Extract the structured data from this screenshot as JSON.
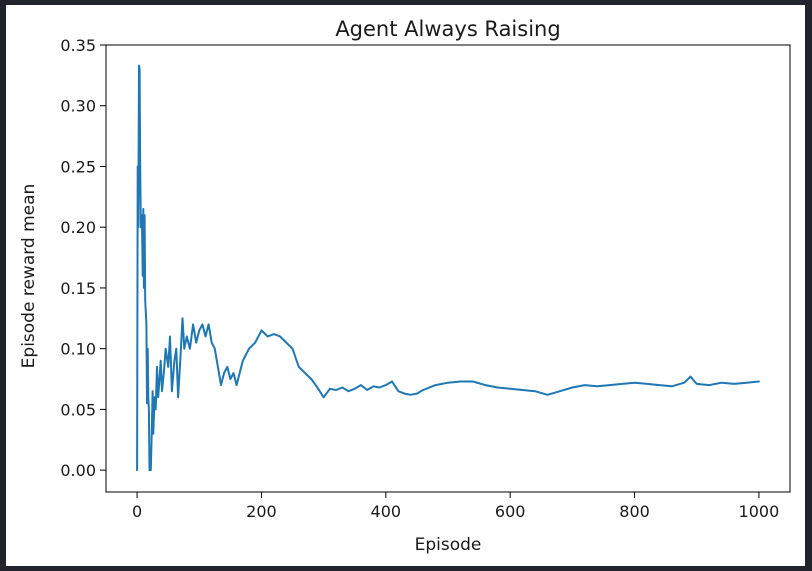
{
  "chart_data": {
    "type": "line",
    "title": "Agent Always Raising",
    "xlabel": "Episode",
    "ylabel": "Episode reward mean",
    "xlim": [
      -50,
      1050
    ],
    "ylim": [
      -0.018,
      0.35
    ],
    "xticks": [
      0,
      200,
      400,
      600,
      800,
      1000
    ],
    "xtick_labels": [
      "0",
      "200",
      "400",
      "600",
      "800",
      "1000"
    ],
    "yticks": [
      0.0,
      0.05,
      0.1,
      0.15,
      0.2,
      0.25,
      0.3,
      0.35
    ],
    "ytick_labels": [
      "0.00",
      "0.05",
      "0.10",
      "0.15",
      "0.20",
      "0.25",
      "0.30",
      "0.35"
    ],
    "grid": false,
    "line_color": "#1f77b4",
    "series": [
      {
        "x": [
          0,
          1,
          2,
          3,
          4,
          5,
          6,
          7,
          8,
          9,
          10,
          11,
          12,
          13,
          14,
          15,
          16,
          17,
          18,
          19,
          20,
          22,
          24,
          25,
          26,
          28,
          30,
          32,
          34,
          36,
          38,
          40,
          43,
          46,
          50,
          53,
          56,
          60,
          63,
          66,
          70,
          73,
          76,
          80,
          85,
          90,
          95,
          100,
          105,
          110,
          115,
          120,
          125,
          130,
          135,
          140,
          145,
          150,
          155,
          160,
          170,
          180,
          190,
          200,
          210,
          220,
          230,
          240,
          250,
          260,
          270,
          280,
          290,
          300,
          310,
          320,
          330,
          340,
          350,
          360,
          370,
          380,
          390,
          400,
          410,
          420,
          430,
          440,
          450,
          460,
          480,
          500,
          520,
          540,
          560,
          580,
          600,
          620,
          640,
          660,
          680,
          700,
          720,
          740,
          760,
          780,
          800,
          820,
          840,
          860,
          880,
          890,
          900,
          920,
          940,
          960,
          980,
          1000
        ],
        "y": [
          0.0,
          0.25,
          0.2,
          0.333,
          0.33,
          0.25,
          0.2,
          0.21,
          0.2,
          0.16,
          0.215,
          0.15,
          0.21,
          0.14,
          0.13,
          0.12,
          0.055,
          0.1,
          0.06,
          0.05,
          0.0,
          0.0,
          0.04,
          0.065,
          0.03,
          0.06,
          0.05,
          0.085,
          0.06,
          0.075,
          0.09,
          0.065,
          0.08,
          0.1,
          0.085,
          0.11,
          0.065,
          0.09,
          0.1,
          0.06,
          0.095,
          0.125,
          0.1,
          0.11,
          0.1,
          0.12,
          0.105,
          0.115,
          0.12,
          0.11,
          0.12,
          0.105,
          0.1,
          0.085,
          0.07,
          0.08,
          0.085,
          0.075,
          0.08,
          0.07,
          0.09,
          0.1,
          0.105,
          0.115,
          0.11,
          0.112,
          0.11,
          0.105,
          0.1,
          0.085,
          0.08,
          0.075,
          0.068,
          0.06,
          0.067,
          0.066,
          0.068,
          0.065,
          0.067,
          0.07,
          0.066,
          0.069,
          0.068,
          0.07,
          0.073,
          0.065,
          0.063,
          0.062,
          0.063,
          0.066,
          0.07,
          0.072,
          0.073,
          0.073,
          0.07,
          0.068,
          0.067,
          0.066,
          0.065,
          0.062,
          0.065,
          0.068,
          0.07,
          0.069,
          0.07,
          0.071,
          0.072,
          0.071,
          0.07,
          0.069,
          0.072,
          0.077,
          0.071,
          0.07,
          0.072,
          0.071,
          0.072,
          0.073
        ]
      }
    ]
  }
}
